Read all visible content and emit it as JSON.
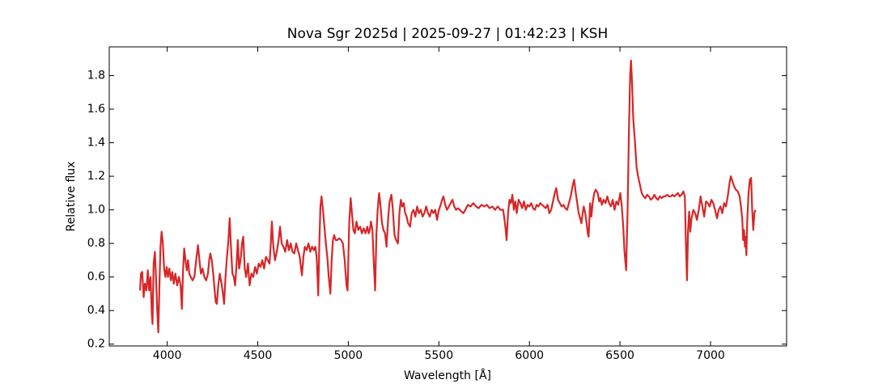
{
  "chart_data": {
    "type": "line",
    "title": "Nova Sgr 2025d | 2025-09-27 | 01:42:23 | KSH",
    "x_label": "Wavelength [Å]",
    "y_label": "Relative flux",
    "color": "#d62728",
    "xlim": [
      3680,
      7420
    ],
    "ylim": [
      0.189,
      1.971
    ],
    "xticks": [
      4000,
      4500,
      5000,
      5500,
      6000,
      6500,
      7000
    ],
    "yticks": [
      0.2,
      0.4,
      0.6,
      0.8,
      {
        "value": 1,
        "label": "1.0"
      },
      1.2,
      1.4,
      1.6,
      1.8
    ],
    "x": [
      3850,
      3855,
      3862,
      3870,
      3877,
      3885,
      3893,
      3900,
      3908,
      3915,
      3919,
      3925,
      3932,
      3938,
      3945,
      3951,
      3957,
      3963,
      3969,
      3976,
      3983,
      3990,
      3997,
      4004,
      4012,
      4020,
      4028,
      4036,
      4045,
      4055,
      4065,
      4074,
      4081,
      4088,
      4094,
      4101,
      4108,
      4115,
      4122,
      4130,
      4140,
      4150,
      4160,
      4170,
      4178,
      4186,
      4195,
      4205,
      4215,
      4225,
      4232,
      4238,
      4246,
      4254,
      4262,
      4268,
      4274,
      4282,
      4290,
      4300,
      4308,
      4314,
      4322,
      4330,
      4338,
      4345,
      4352,
      4360,
      4368,
      4375,
      4382,
      4390,
      4397,
      4405,
      4413,
      4420,
      4428,
      4436,
      4446,
      4455,
      4465,
      4475,
      4485,
      4495,
      4505,
      4515,
      4525,
      4535,
      4545,
      4555,
      4565,
      4572,
      4578,
      4586,
      4595,
      4605,
      4615,
      4623,
      4632,
      4642,
      4652,
      4662,
      4672,
      4682,
      4692,
      4702,
      4712,
      4722,
      4732,
      4738,
      4744,
      4752,
      4760,
      4770,
      4780,
      4790,
      4800,
      4810,
      4818,
      4825,
      4830,
      4834,
      4840,
      4846,
      4852,
      4860,
      4868,
      4876,
      4884,
      4892,
      4901,
      4908,
      4915,
      4922,
      4930,
      4940,
      4950,
      4960,
      4970,
      4980,
      4990,
      4996,
      5005,
      5013,
      5020,
      5028,
      5036,
      5045,
      5055,
      5065,
      5075,
      5085,
      5095,
      5105,
      5112,
      5117,
      5125,
      5133,
      5140,
      5148,
      5155,
      5162,
      5170,
      5178,
      5186,
      5194,
      5203,
      5211,
      5220,
      5228,
      5238,
      5246,
      5255,
      5264,
      5274,
      5282,
      5290,
      5298,
      5306,
      5314,
      5322,
      5330,
      5341,
      5350,
      5360,
      5370,
      5380,
      5390,
      5400,
      5410,
      5420,
      5430,
      5440,
      5450,
      5460,
      5470,
      5480,
      5490,
      5500,
      5510,
      5518,
      5525,
      5535,
      5545,
      5555,
      5565,
      5575,
      5585,
      5595,
      5605,
      5615,
      5625,
      5635,
      5646,
      5660,
      5675,
      5690,
      5705,
      5720,
      5735,
      5750,
      5765,
      5780,
      5795,
      5810,
      5825,
      5840,
      5855,
      5865,
      5874,
      5882,
      5890,
      5898,
      5906,
      5914,
      5922,
      5930,
      5940,
      5950,
      5960,
      5970,
      5980,
      5990,
      6000,
      6010,
      6020,
      6030,
      6040,
      6050,
      6060,
      6070,
      6080,
      6090,
      6100,
      6110,
      6120,
      6130,
      6140,
      6148,
      6158,
      6168,
      6178,
      6188,
      6198,
      6208,
      6218,
      6228,
      6238,
      6247,
      6256,
      6264,
      6272,
      6280,
      6287,
      6294,
      6300,
      6308,
      6316,
      6322,
      6327,
      6335,
      6342,
      6350,
      6358,
      6366,
      6377,
      6385,
      6392,
      6400,
      6410,
      6420,
      6430,
      6440,
      6450,
      6460,
      6470,
      6480,
      6490,
      6502,
      6510,
      6518,
      6525,
      6534,
      6542,
      6550,
      6556,
      6561,
      6567,
      6573,
      6583,
      6592,
      6600,
      6610,
      6620,
      6630,
      6640,
      6650,
      6660,
      6670,
      6680,
      6690,
      6700,
      6710,
      6720,
      6730,
      6740,
      6750,
      6760,
      6770,
      6780,
      6790,
      6800,
      6810,
      6820,
      6830,
      6840,
      6850,
      6858,
      6864,
      6870,
      6876,
      6882,
      6888,
      6895,
      6905,
      6915,
      6925,
      6935,
      6945,
      6955,
      6965,
      6975,
      6985,
      6995,
      7005,
      7015,
      7025,
      7036,
      7045,
      7055,
      7065,
      7075,
      7085,
      7095,
      7105,
      7112,
      7121,
      7130,
      7140,
      7150,
      7161,
      7168,
      7175,
      7180,
      7185,
      7190,
      7193,
      7198,
      7203,
      7210,
      7217,
      7224,
      7230,
      7236,
      7242,
      7248
    ],
    "values": [
      0.52,
      0.62,
      0.63,
      0.48,
      0.56,
      0.52,
      0.64,
      0.52,
      0.6,
      0.38,
      0.32,
      0.68,
      0.75,
      0.6,
      0.4,
      0.27,
      0.55,
      0.78,
      0.87,
      0.8,
      0.65,
      0.6,
      0.66,
      0.6,
      0.65,
      0.58,
      0.63,
      0.56,
      0.62,
      0.55,
      0.6,
      0.55,
      0.41,
      0.65,
      0.77,
      0.7,
      0.64,
      0.7,
      0.62,
      0.6,
      0.58,
      0.6,
      0.7,
      0.79,
      0.7,
      0.62,
      0.65,
      0.6,
      0.58,
      0.62,
      0.7,
      0.74,
      0.7,
      0.62,
      0.52,
      0.45,
      0.44,
      0.55,
      0.62,
      0.56,
      0.5,
      0.44,
      0.6,
      0.72,
      0.82,
      0.95,
      0.78,
      0.62,
      0.6,
      0.55,
      0.66,
      0.82,
      0.65,
      0.7,
      0.8,
      0.84,
      0.65,
      0.6,
      0.68,
      0.55,
      0.62,
      0.6,
      0.66,
      0.62,
      0.68,
      0.66,
      0.7,
      0.65,
      0.72,
      0.7,
      0.68,
      0.8,
      0.93,
      0.78,
      0.7,
      0.75,
      0.82,
      0.9,
      0.8,
      0.78,
      0.75,
      0.82,
      0.76,
      0.8,
      0.75,
      0.74,
      0.8,
      0.76,
      0.72,
      0.66,
      0.61,
      0.72,
      0.78,
      0.76,
      0.8,
      0.75,
      0.78,
      0.76,
      0.78,
      0.72,
      0.6,
      0.49,
      0.8,
      1.02,
      1.08,
      1.0,
      0.9,
      0.8,
      0.72,
      0.6,
      0.5,
      0.7,
      0.82,
      0.85,
      0.82,
      0.82,
      0.83,
      0.82,
      0.8,
      0.7,
      0.55,
      0.52,
      0.92,
      1.07,
      0.98,
      0.88,
      0.86,
      0.93,
      0.88,
      0.9,
      0.86,
      0.89,
      0.86,
      0.9,
      0.86,
      0.87,
      0.93,
      0.88,
      0.7,
      0.52,
      0.85,
      1.0,
      1.1,
      1.02,
      0.92,
      0.88,
      0.86,
      0.78,
      0.95,
      1.05,
      1.09,
      1.0,
      0.85,
      0.82,
      0.8,
      0.98,
      1.06,
      1.02,
      1.04,
      0.98,
      0.96,
      0.92,
      0.9,
      0.98,
      1.0,
      0.96,
      1.02,
      0.98,
      1.0,
      0.96,
      0.98,
      1.02,
      0.98,
      0.96,
      1.0,
      0.98,
      1.0,
      0.94,
      1.0,
      1.03,
      1.06,
      1.08,
      1.03,
      1.0,
      1.02,
      1.04,
      1.06,
      1.02,
      1.0,
      1.01,
      1.0,
      0.99,
      0.98,
      1.0,
      1.03,
      1.02,
      1.04,
      1.02,
      1.01,
      1.03,
      1.02,
      1.03,
      1.01,
      1.02,
      1.0,
      1.02,
      1.0,
      1.0,
      0.92,
      0.82,
      0.98,
      1.06,
      1.04,
      1.09,
      1.0,
      1.05,
      0.98,
      1.06,
      1.04,
      1.01,
      1.05,
      1.0,
      1.03,
      1.02,
      1.04,
      1.01,
      1.0,
      1.03,
      1.02,
      1.04,
      1.03,
      1.02,
      1.01,
      1.03,
      0.98,
      1.0,
      1.05,
      1.1,
      1.13,
      1.06,
      1.04,
      1.02,
      1.03,
      1.01,
      1.0,
      1.04,
      1.08,
      1.14,
      1.18,
      1.1,
      1.04,
      0.98,
      0.95,
      0.92,
      0.98,
      1.02,
      0.98,
      0.92,
      0.86,
      0.84,
      1.04,
      0.96,
      1.05,
      1.1,
      1.12,
      1.1,
      1.05,
      1.07,
      1.03,
      1.06,
      1.04,
      1.08,
      1.04,
      1.02,
      1.06,
      1.0,
      1.05,
      1.03,
      1.1,
      1.02,
      0.9,
      0.75,
      0.64,
      1.0,
      1.5,
      1.8,
      1.89,
      1.75,
      1.55,
      1.4,
      1.25,
      1.2,
      1.15,
      1.1,
      1.08,
      1.07,
      1.09,
      1.08,
      1.06,
      1.07,
      1.09,
      1.07,
      1.06,
      1.08,
      1.07,
      1.08,
      1.08,
      1.09,
      1.08,
      1.08,
      1.09,
      1.08,
      1.09,
      1.1,
      1.08,
      1.09,
      1.11,
      1.08,
      0.8,
      0.58,
      0.88,
      0.99,
      0.87,
      0.95,
      1.0,
      0.98,
      0.94,
      1.0,
      1.08,
      1.02,
      0.96,
      1.05,
      1.04,
      1.02,
      1.06,
      1.04,
      1.0,
      0.95,
      1.0,
      1.02,
      0.98,
      1.04,
      1.02,
      1.08,
      1.16,
      1.2,
      1.17,
      1.14,
      1.12,
      1.11,
      1.08,
      1.02,
      0.95,
      0.82,
      0.88,
      0.78,
      0.84,
      0.73,
      0.95,
      1.1,
      1.18,
      1.19,
      1.0,
      0.88,
      0.98,
      1.0
    ]
  }
}
